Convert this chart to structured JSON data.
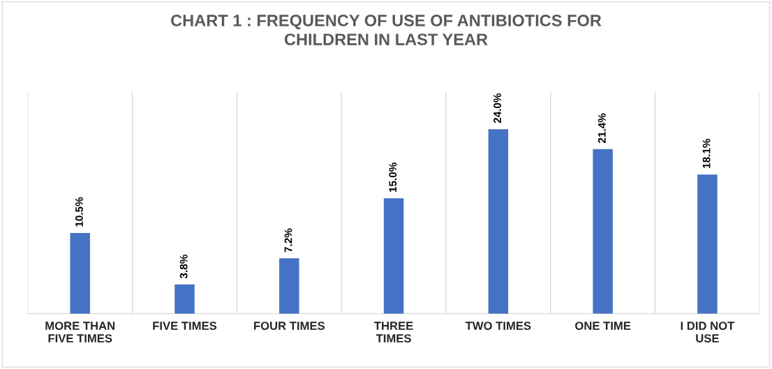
{
  "chart_data": {
    "type": "bar",
    "title": "CHART 1 : FREQUENCY OF USE OF ANTIBIOTICS FOR\nCHILDREN IN LAST YEAR",
    "categories": [
      "MORE THAN\nFIVE TIMES",
      "FIVE TIMES",
      "FOUR TIMES",
      "THREE\nTIMES",
      "TWO TIMES",
      "ONE TIME",
      "I DID NOT\nUSE"
    ],
    "values": [
      10.5,
      3.8,
      7.2,
      15.0,
      24.0,
      21.4,
      18.1
    ],
    "value_labels": [
      "10.5%",
      "3.8%",
      "7.2%",
      "15.0%",
      "24.0%",
      "21.4%",
      "18.1%"
    ],
    "color": "#4472c4",
    "grid": "x",
    "legend": false
  }
}
